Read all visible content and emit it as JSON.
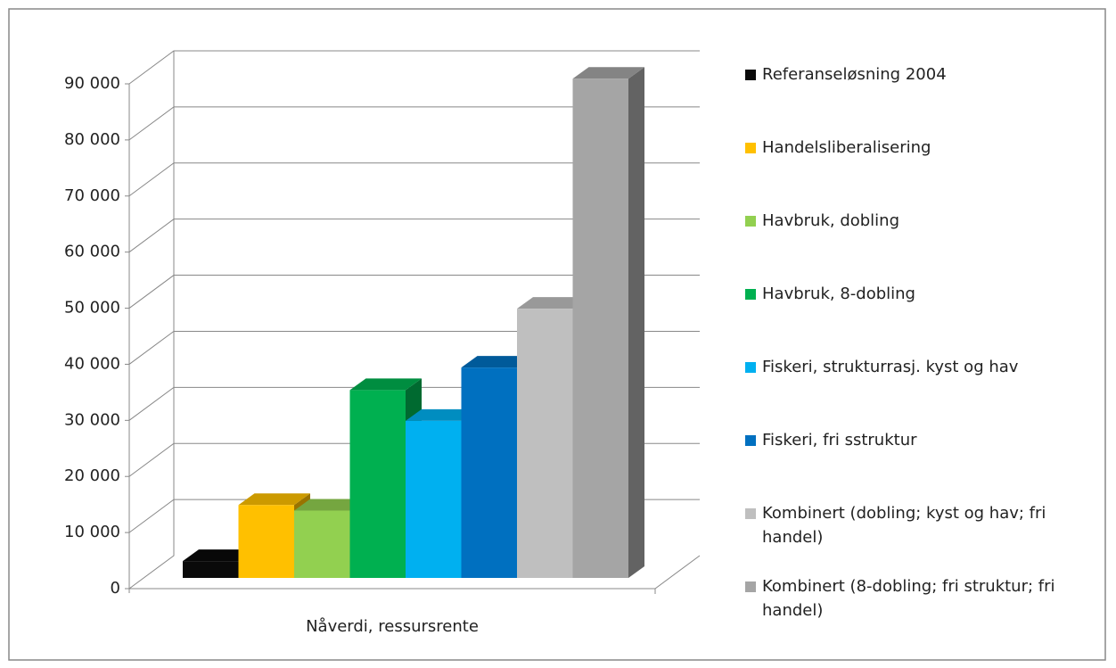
{
  "chart_data": {
    "type": "bar3d",
    "categories": [
      "Nåverdi, ressursrente"
    ],
    "series": [
      {
        "name": "Referanseløsning 2004",
        "color": "#0a0a0a",
        "values": [
          3000
        ]
      },
      {
        "name": "Handelsliberalisering",
        "color": "#ffc000",
        "values": [
          13000
        ]
      },
      {
        "name": "Havbruk, dobling",
        "color": "#92d050",
        "values": [
          12000
        ]
      },
      {
        "name": "Havbruk, 8-dobling",
        "color": "#00b050",
        "values": [
          33500
        ]
      },
      {
        "name": "Fiskeri, strukturrasj. kyst og hav",
        "color": "#00b0f0",
        "values": [
          28000
        ]
      },
      {
        "name": "Fiskeri, fri sstruktur",
        "color": "#0070c0",
        "values": [
          37500
        ]
      },
      {
        "name": "Kombinert (dobling; kyst og hav; fri handel)",
        "color": "#bfbfbf",
        "values": [
          48000
        ]
      },
      {
        "name": "Kombinert (8-dobling; fri struktur; fri handel)",
        "color": "#a5a5a5",
        "values": [
          89000
        ]
      }
    ],
    "ylim": [
      0,
      90000
    ],
    "yticks": [
      0,
      {
        "value": 10000,
        "label": "10 000"
      },
      {
        "value": 20000,
        "label": "20 000"
      },
      {
        "value": 30000,
        "label": "30 000"
      },
      {
        "value": 40000,
        "label": "40 000"
      },
      {
        "value": 50000,
        "label": "50 000"
      },
      {
        "value": 60000,
        "label": "60 000"
      },
      {
        "value": 70000,
        "label": "70 000"
      },
      {
        "value": 80000,
        "label": "80 000"
      },
      {
        "value": 90000,
        "label": "90 000"
      }
    ],
    "grid": true,
    "legend": "right"
  }
}
